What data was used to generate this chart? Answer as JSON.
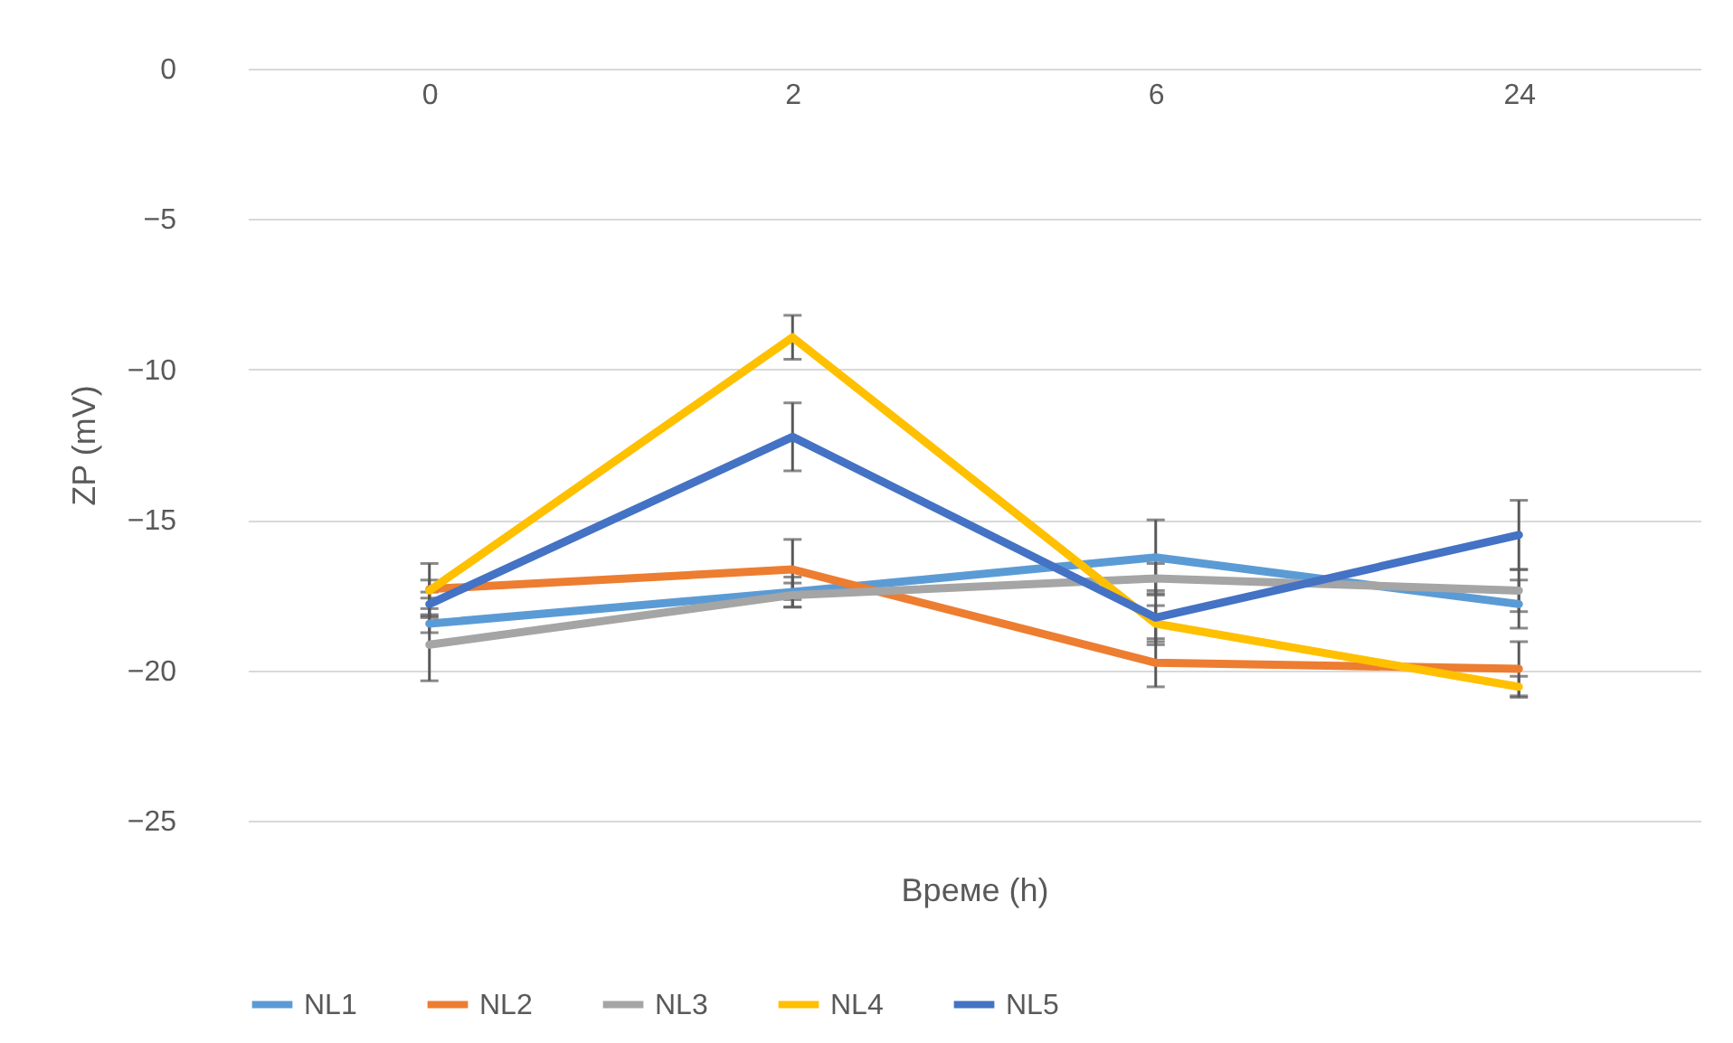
{
  "chart_data": {
    "type": "line",
    "xlabel": "Време (h)",
    "ylabel": "ZP (mV)",
    "categories": [
      "0",
      "2",
      "6",
      "24"
    ],
    "ylim": [
      -25,
      0
    ],
    "yticks": [
      -25,
      -20,
      -15,
      -10,
      -5,
      0
    ],
    "grid": "y",
    "legend": "bottom",
    "marker": "none",
    "line_style": "solid",
    "series": [
      {
        "name": "NL1",
        "color": "#5b9bd5",
        "values": [
          -18.45,
          -17.4,
          -16.25,
          -17.8
        ],
        "errors": [
          0.3,
          0.5,
          1.25,
          0.8
        ]
      },
      {
        "name": "NL2",
        "color": "#ed7d31",
        "values": [
          -17.3,
          -16.65,
          -19.75,
          -19.95
        ],
        "errors": [
          0.3,
          1.0,
          0.8,
          0.9
        ]
      },
      {
        "name": "NL3",
        "color": "#a5a5a5",
        "values": [
          -19.15,
          -17.5,
          -16.95,
          -17.35
        ],
        "errors": [
          1.2,
          0.4,
          0.5,
          0.7
        ]
      },
      {
        "name": "NL4",
        "color": "#ffc000",
        "values": [
          -17.35,
          -8.93,
          -18.45,
          -20.55
        ],
        "errors": [
          0.9,
          0.73,
          0.6,
          0.35
        ]
      },
      {
        "name": "NL5",
        "color": "#4472c4",
        "values": [
          -17.8,
          -12.24,
          -18.25,
          -15.5
        ],
        "errors": [
          0.4,
          1.13,
          0.9,
          1.15
        ]
      }
    ]
  }
}
